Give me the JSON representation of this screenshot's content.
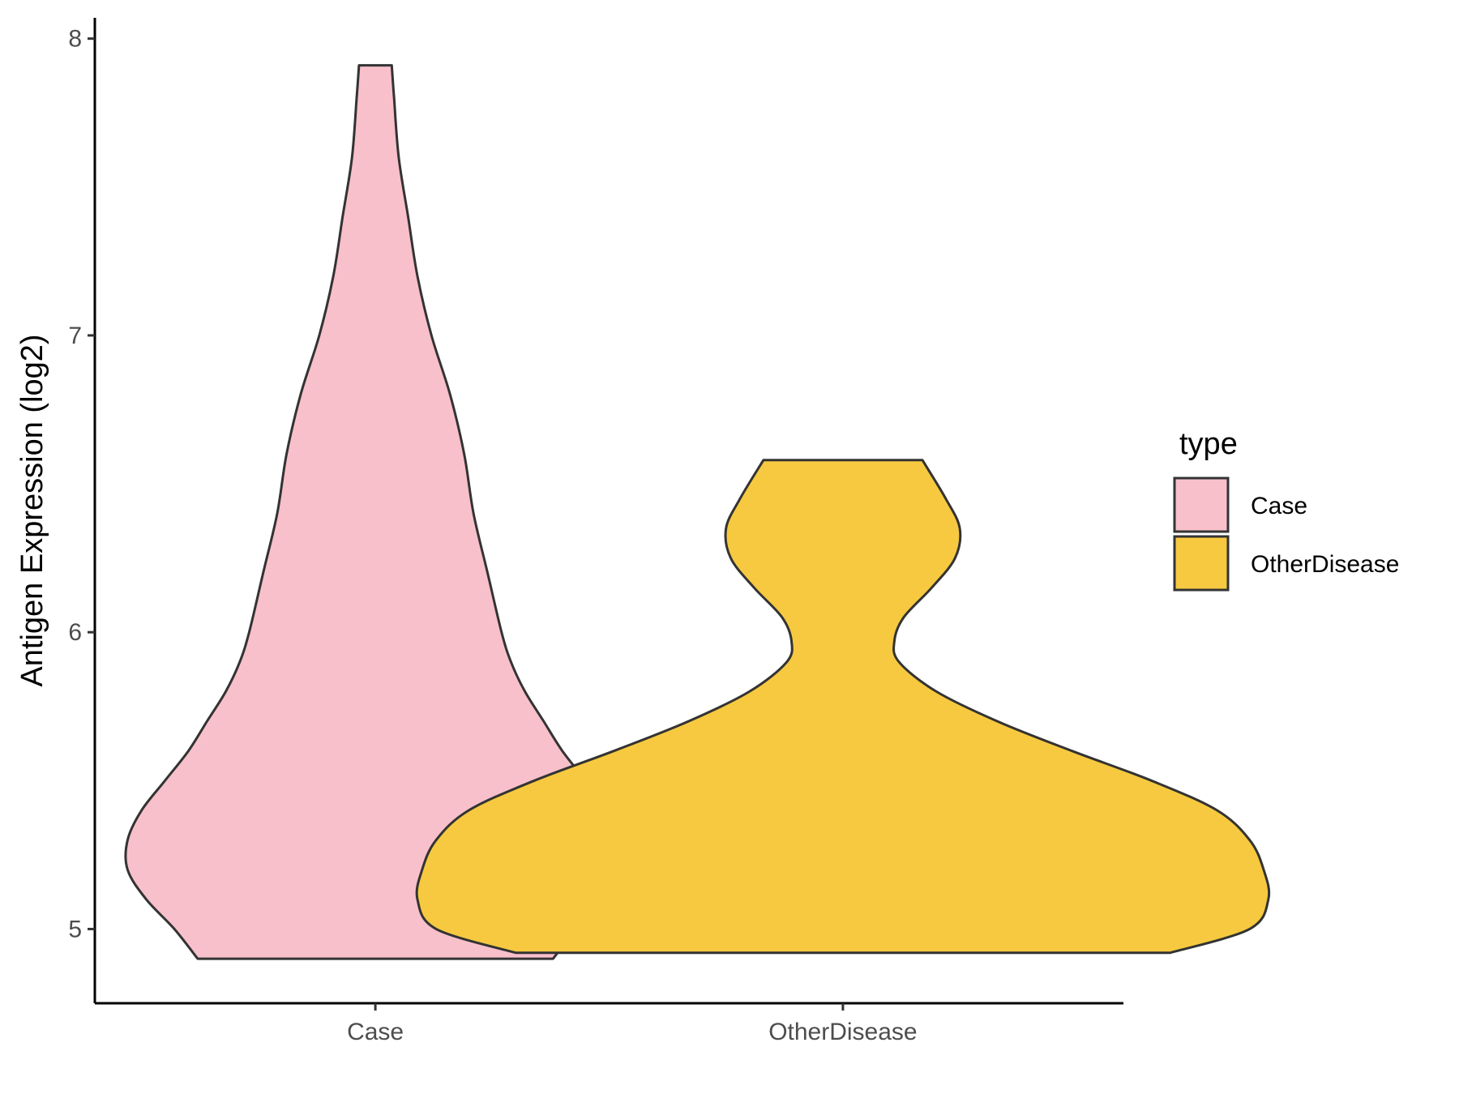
{
  "chart_data": {
    "type": "violin",
    "ylabel": "Antigen Expression (log2)",
    "xlabel": "",
    "categories": [
      "Case",
      "OtherDisease"
    ],
    "yticks": [
      5,
      6,
      7,
      8
    ],
    "ylim": [
      4.75,
      8.07
    ],
    "legend": {
      "title": "type",
      "position": "right",
      "entries": [
        "Case",
        "OtherDisease"
      ]
    },
    "grid": false,
    "series": [
      {
        "name": "Case",
        "color": "#f8c0cb",
        "min": 4.9,
        "max": 7.91,
        "density_profile": [
          {
            "y": 4.9,
            "halfwidth": 0.38
          },
          {
            "y": 5.0,
            "halfwidth": 0.43
          },
          {
            "y": 5.1,
            "halfwidth": 0.49
          },
          {
            "y": 5.2,
            "halfwidth": 0.53
          },
          {
            "y": 5.3,
            "halfwidth": 0.53
          },
          {
            "y": 5.4,
            "halfwidth": 0.5
          },
          {
            "y": 5.5,
            "halfwidth": 0.45
          },
          {
            "y": 5.6,
            "halfwidth": 0.4
          },
          {
            "y": 5.7,
            "halfwidth": 0.36
          },
          {
            "y": 5.8,
            "halfwidth": 0.32
          },
          {
            "y": 5.9,
            "halfwidth": 0.29
          },
          {
            "y": 6.0,
            "halfwidth": 0.27
          },
          {
            "y": 6.2,
            "halfwidth": 0.24
          },
          {
            "y": 6.4,
            "halfwidth": 0.21
          },
          {
            "y": 6.6,
            "halfwidth": 0.19
          },
          {
            "y": 6.8,
            "halfwidth": 0.16
          },
          {
            "y": 7.0,
            "halfwidth": 0.12
          },
          {
            "y": 7.2,
            "halfwidth": 0.09
          },
          {
            "y": 7.4,
            "halfwidth": 0.07
          },
          {
            "y": 7.6,
            "halfwidth": 0.05
          },
          {
            "y": 7.8,
            "halfwidth": 0.04
          },
          {
            "y": 7.91,
            "halfwidth": 0.035
          }
        ]
      },
      {
        "name": "OtherDisease",
        "color": "#f6c940",
        "min": 4.92,
        "max": 6.58,
        "density_profile": [
          {
            "y": 4.92,
            "halfwidth": 0.7
          },
          {
            "y": 5.0,
            "halfwidth": 0.87
          },
          {
            "y": 5.1,
            "halfwidth": 0.91
          },
          {
            "y": 5.2,
            "halfwidth": 0.9
          },
          {
            "y": 5.3,
            "halfwidth": 0.87
          },
          {
            "y": 5.4,
            "halfwidth": 0.8
          },
          {
            "y": 5.5,
            "halfwidth": 0.66
          },
          {
            "y": 5.6,
            "halfwidth": 0.49
          },
          {
            "y": 5.7,
            "halfwidth": 0.33
          },
          {
            "y": 5.8,
            "halfwidth": 0.2
          },
          {
            "y": 5.9,
            "halfwidth": 0.12
          },
          {
            "y": 5.97,
            "halfwidth": 0.11
          },
          {
            "y": 6.05,
            "halfwidth": 0.13
          },
          {
            "y": 6.15,
            "halfwidth": 0.19
          },
          {
            "y": 6.25,
            "halfwidth": 0.24
          },
          {
            "y": 6.35,
            "halfwidth": 0.25
          },
          {
            "y": 6.45,
            "halfwidth": 0.22
          },
          {
            "y": 6.58,
            "halfwidth": 0.17
          }
        ]
      }
    ]
  }
}
